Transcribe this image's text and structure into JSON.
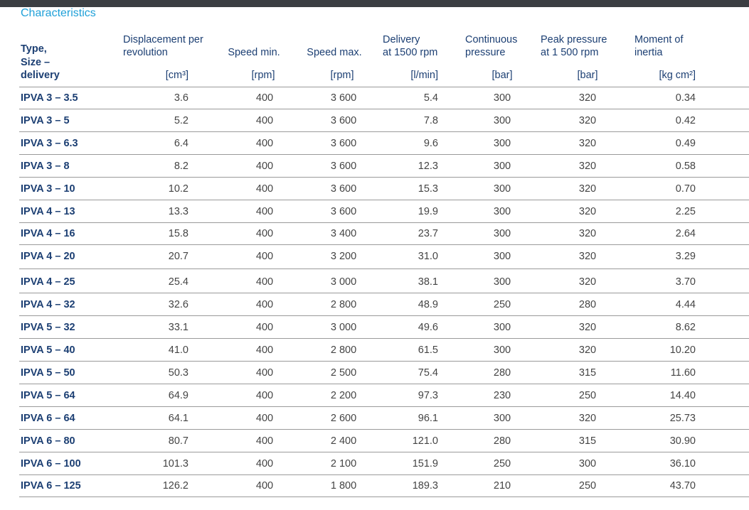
{
  "header": {
    "title": "Characteristics"
  },
  "table": {
    "columns": [
      {
        "title": [
          "Type,",
          "Size –",
          "delivery"
        ]
      },
      {
        "title": [
          "Displacement per",
          "revolution"
        ],
        "unit": "[cm³]"
      },
      {
        "title": [
          "Speed min."
        ],
        "unit": "[rpm]"
      },
      {
        "title": [
          "Speed max."
        ],
        "unit": "[rpm]"
      },
      {
        "title": [
          "Delivery",
          "at 1500 rpm"
        ],
        "unit": "[l/min]"
      },
      {
        "title": [
          "Continuous",
          "pressure"
        ],
        "unit": "[bar]"
      },
      {
        "title": [
          "Peak pressure",
          "at 1 500 rpm"
        ],
        "unit": "[bar]"
      },
      {
        "title": [
          "Moment of",
          "inertia"
        ],
        "unit": "[kg cm²]"
      }
    ],
    "rows": [
      [
        "IPVA 3 – 3.5",
        "3.6",
        "400",
        "3 600",
        "5.4",
        "300",
        "320",
        "0.34"
      ],
      [
        "IPVA 3 – 5",
        "5.2",
        "400",
        "3 600",
        "7.8",
        "300",
        "320",
        "0.42"
      ],
      [
        "IPVA 3 – 6.3",
        "6.4",
        "400",
        "3 600",
        "9.6",
        "300",
        "320",
        "0.49"
      ],
      [
        "IPVA 3 – 8",
        "8.2",
        "400",
        "3 600",
        "12.3",
        "300",
        "320",
        "0.58"
      ],
      [
        "IPVA 3 – 10",
        "10.2",
        "400",
        "3 600",
        "15.3",
        "300",
        "320",
        "0.70"
      ],
      [
        "IPVA 4 – 13",
        "13.3",
        "400",
        "3 600",
        "19.9",
        "300",
        "320",
        "2.25"
      ],
      [
        "IPVA 4 – 16",
        "15.8",
        "400",
        "3 400",
        "23.7",
        "300",
        "320",
        "2.64"
      ],
      [
        "IPVA 4 – 20",
        "20.7",
        "400",
        "3 200",
        "31.0",
        "300",
        "320",
        "3.29"
      ],
      [
        "IPVA 4 – 25",
        "25.4",
        "400",
        "3 000",
        "38.1",
        "300",
        "320",
        "3.70"
      ],
      [
        "IPVA 4 – 32",
        "32.6",
        "400",
        "2 800",
        "48.9",
        "250",
        "280",
        "4.44"
      ],
      [
        "IPVA 5 – 32",
        "33.1",
        "400",
        "3 000",
        "49.6",
        "300",
        "320",
        "8.62"
      ],
      [
        "IPVA 5 – 40",
        "41.0",
        "400",
        "2 800",
        "61.5",
        "300",
        "320",
        "10.20"
      ],
      [
        "IPVA 5 – 50",
        "50.3",
        "400",
        "2 500",
        "75.4",
        "280",
        "315",
        "11.60"
      ],
      [
        "IPVA 5 – 64",
        "64.9",
        "400",
        "2 200",
        "97.3",
        "230",
        "250",
        "14.40"
      ],
      [
        "IPVA 6 – 64",
        "64.1",
        "400",
        "2 600",
        "96.1",
        "300",
        "320",
        "25.73"
      ],
      [
        "IPVA 6 – 80",
        "80.7",
        "400",
        "2 400",
        "121.0",
        "280",
        "315",
        "30.90"
      ],
      [
        "IPVA 6 – 100",
        "101.3",
        "400",
        "2 100",
        "151.9",
        "250",
        "300",
        "36.10"
      ],
      [
        "IPVA 6 – 125",
        "126.2",
        "400",
        "1 800",
        "189.3",
        "210",
        "250",
        "43.70"
      ]
    ]
  }
}
